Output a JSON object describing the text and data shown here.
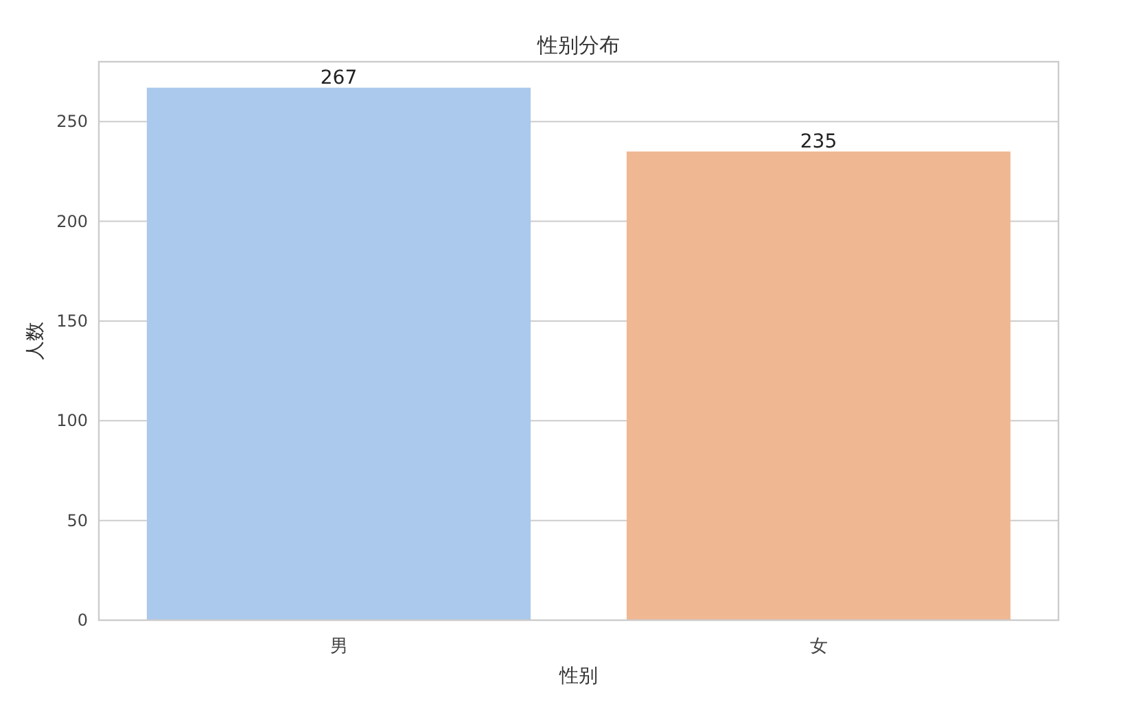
{
  "chart_data": {
    "type": "bar",
    "title": "性别分布",
    "xlabel": "性别",
    "ylabel": "人数",
    "categories": [
      "男",
      "女"
    ],
    "values": [
      267,
      235
    ],
    "colors": [
      "#abc9ec",
      "#f0b892"
    ],
    "ylim": [
      0,
      280
    ],
    "yticks": [
      0,
      50,
      100,
      150,
      200,
      250
    ],
    "grid": "y",
    "data_labels": true
  }
}
